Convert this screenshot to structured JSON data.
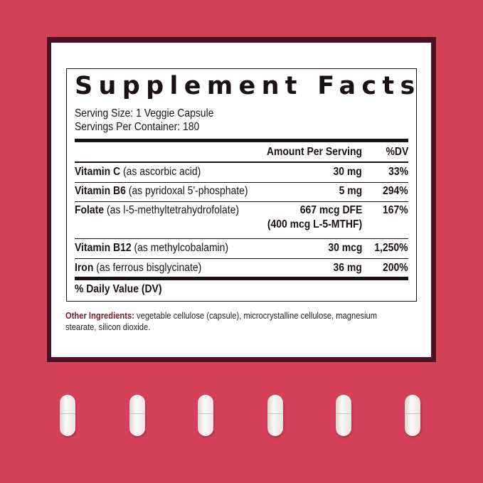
{
  "title": "Supplement Facts",
  "serving_size": "Serving Size: 1 Veggie Capsule",
  "servings_per_container": "Servings Per Container: 180",
  "header": {
    "amount": "Amount Per Serving",
    "dv": "%DV"
  },
  "rows": [
    {
      "name": "Vitamin C",
      "source": "(as ascorbic acid)",
      "amount": "30 mg",
      "dv": "33%"
    },
    {
      "name": "Vitamin B6",
      "source": "(as pyridoxal 5'-phosphate)",
      "amount": "5 mg",
      "dv": "294%"
    },
    {
      "name": "Folate",
      "source": "(as l-5-methyltetrahydrofolate)",
      "amount": "667 mcg DFE",
      "amount2": "(400 mcg L-5-MTHF)",
      "dv": "167%"
    },
    {
      "name": "Vitamin B12",
      "source": "(as methylcobalamin)",
      "amount": "30 mcg",
      "dv": "1,250%"
    },
    {
      "name": "Iron",
      "source": "(as ferrous bisglycinate)",
      "amount": "36 mg",
      "dv": "200%"
    }
  ],
  "footer": "% Daily Value (DV)",
  "other_label": "Other Ingredients:",
  "other_text": "vegetable cellulose (capsule), microcrystalline cellulose, magnesium stearate, silicon dioxide.",
  "colors": {
    "background": "#d6415a",
    "frame": "#4a1220",
    "accent": "#7a1a30"
  }
}
